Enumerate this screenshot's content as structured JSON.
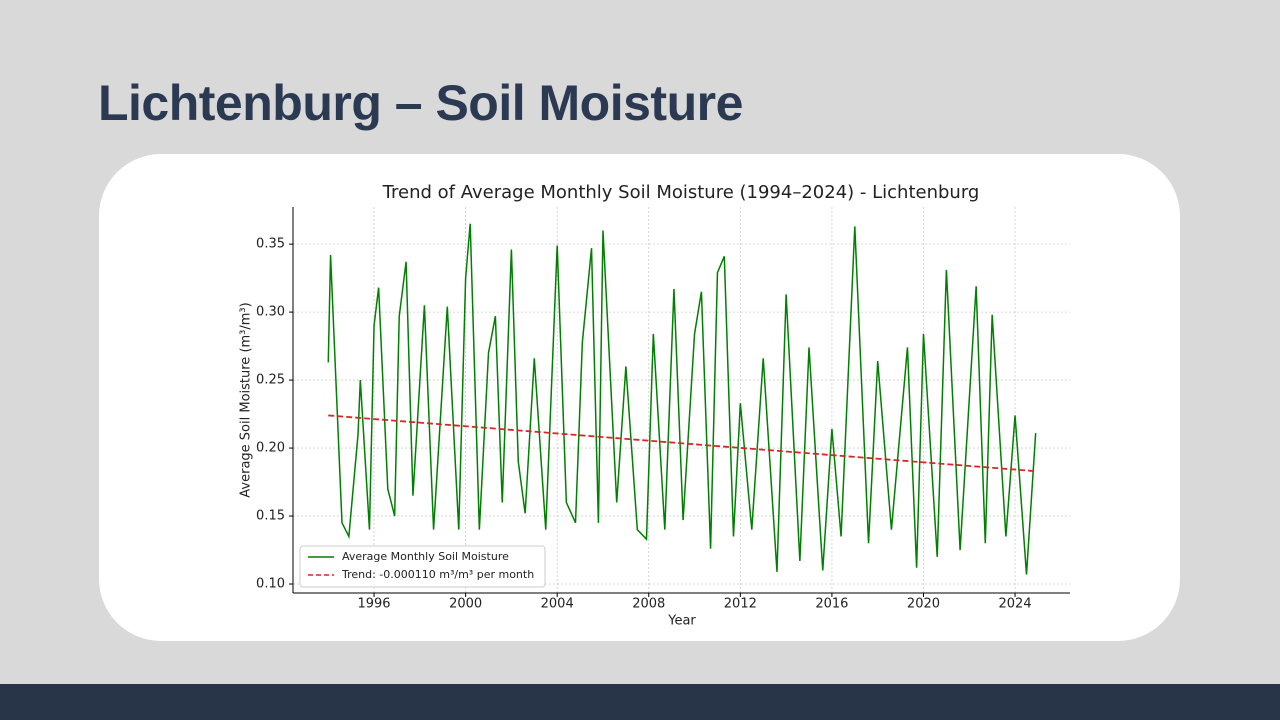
{
  "slide_title": "Lichtenburg – Soil Moisture",
  "chart_data": {
    "type": "line",
    "title": "Trend of Average Monthly Soil Moisture (1994–2024) - Lichtenburg",
    "xlabel": "Year",
    "ylabel": "Average Soil Moisture (m³/m³)",
    "xlim": [
      1992.46,
      2026.4
    ],
    "ylim": [
      0.0934,
      0.3773
    ],
    "xticks": [
      1996,
      2000,
      2004,
      2008,
      2012,
      2016,
      2020,
      2024
    ],
    "yticks": [
      {
        "value": 0.1,
        "label": "0.10"
      },
      0.15,
      {
        "value": 0.2,
        "label": "0.20"
      },
      0.25,
      {
        "value": 0.3,
        "label": "0.30"
      },
      0.35
    ],
    "grid": true,
    "legend": "lower left",
    "series": [
      {
        "name": "Average Monthly Soil Moisture",
        "color": "#008000",
        "style": "solid",
        "x": [
          1994.0,
          1994.1,
          1994.6,
          1994.9,
          1995.3,
          1995.4,
          1995.8,
          1996.0,
          1996.2,
          1996.6,
          1996.9,
          1997.1,
          1997.4,
          1997.7,
          1998.2,
          1998.6,
          1999.2,
          1999.7,
          2000.0,
          2000.2,
          2000.6,
          2001.0,
          2001.3,
          2001.6,
          2002.0,
          2002.3,
          2002.6,
          2003.0,
          2003.5,
          2004.0,
          2004.4,
          2004.8,
          2005.1,
          2005.5,
          2005.8,
          2006.0,
          2006.6,
          2007.0,
          2007.5,
          2007.9,
          2008.2,
          2008.7,
          2009.1,
          2009.5,
          2010.0,
          2010.3,
          2010.7,
          2011.0,
          2011.3,
          2011.7,
          2012.0,
          2012.5,
          2013.0,
          2013.6,
          2014.0,
          2014.6,
          2015.0,
          2015.6,
          2016.0,
          2016.4,
          2017.0,
          2017.6,
          2018.0,
          2018.6,
          2019.3,
          2019.7,
          2020.0,
          2020.6,
          2021.0,
          2021.6,
          2022.3,
          2022.7,
          2023.0,
          2023.6,
          2024.0,
          2024.5,
          2024.9
        ],
        "values": [
          0.263,
          0.342,
          0.145,
          0.135,
          0.21,
          0.25,
          0.14,
          0.29,
          0.318,
          0.17,
          0.15,
          0.297,
          0.337,
          0.165,
          0.305,
          0.14,
          0.304,
          0.14,
          0.325,
          0.365,
          0.14,
          0.27,
          0.297,
          0.16,
          0.346,
          0.19,
          0.152,
          0.266,
          0.14,
          0.349,
          0.16,
          0.145,
          0.278,
          0.347,
          0.145,
          0.36,
          0.16,
          0.26,
          0.14,
          0.133,
          0.284,
          0.14,
          0.317,
          0.147,
          0.284,
          0.315,
          0.126,
          0.329,
          0.341,
          0.135,
          0.233,
          0.14,
          0.266,
          0.109,
          0.313,
          0.117,
          0.274,
          0.11,
          0.214,
          0.135,
          0.363,
          0.13,
          0.264,
          0.14,
          0.274,
          0.112,
          0.284,
          0.12,
          0.331,
          0.125,
          0.319,
          0.13,
          0.298,
          0.135,
          0.224,
          0.107,
          0.211
        ]
      },
      {
        "name": "Trend: -0.000110 m³/m³ per month",
        "color": "#d62728",
        "style": "dashed",
        "x": [
          1994.0,
          2024.9
        ],
        "values": [
          0.224,
          0.183
        ]
      }
    ]
  }
}
